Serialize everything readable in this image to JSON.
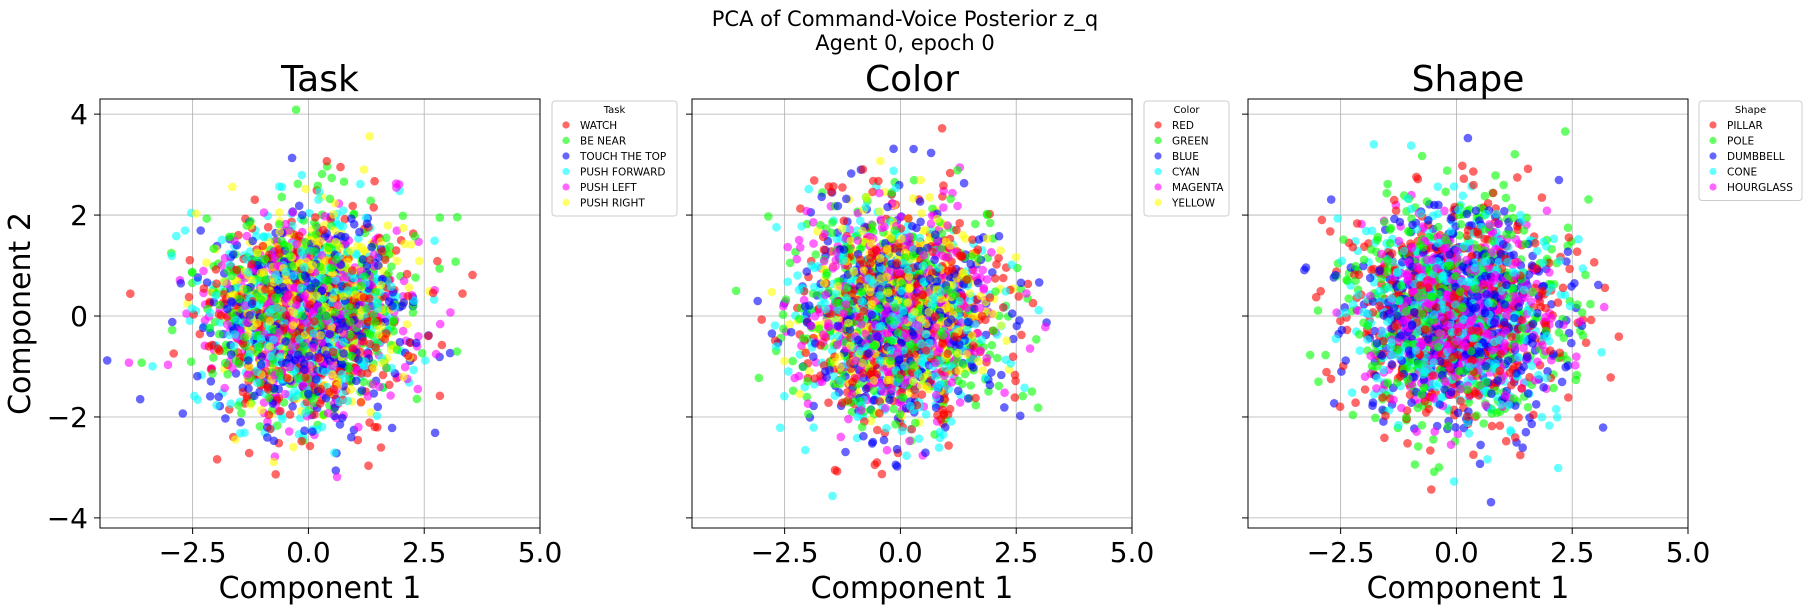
{
  "figure": {
    "suptitle_line1": "PCA of Command-Voice Posterior z_q",
    "suptitle_line2": "Agent 0, epoch 0"
  },
  "palette": [
    "#ff0000",
    "#00ff00",
    "#0000ff",
    "#00ffff",
    "#ff00ff",
    "#ffff00"
  ],
  "chart_data": [
    {
      "type": "scatter",
      "title": "Task",
      "xlabel": "Component 1",
      "ylabel": "Component 2",
      "xlim": [
        -4.5,
        5.0
      ],
      "ylim": [
        -4.2,
        4.3
      ],
      "xticks": [
        -2.5,
        0.0,
        2.5,
        5.0
      ],
      "xtick_labels": [
        "−2.5",
        "0.0",
        "2.5",
        "5.0"
      ],
      "yticks": [
        -4,
        -2,
        0,
        2,
        4
      ],
      "ytick_labels": [
        "−4",
        "−2",
        "0",
        "2",
        "4"
      ],
      "grid": true,
      "legend_placement": "outside-upper-right",
      "legend_title": "Task",
      "series": [
        {
          "name": "WATCH",
          "color": "#ff0000",
          "center": [
            0.0,
            0.0
          ],
          "spread": [
            1.1,
            1.05
          ],
          "count": 420
        },
        {
          "name": "BE NEAR",
          "color": "#00ff00",
          "center": [
            0.0,
            0.0
          ],
          "spread": [
            1.1,
            1.05
          ],
          "count": 420
        },
        {
          "name": "TOUCH THE TOP",
          "color": "#0000ff",
          "center": [
            0.0,
            0.0
          ],
          "spread": [
            1.05,
            1.0
          ],
          "count": 420
        },
        {
          "name": "PUSH FORWARD",
          "color": "#00ffff",
          "center": [
            0.0,
            0.0
          ],
          "spread": [
            1.05,
            1.0
          ],
          "count": 420
        },
        {
          "name": "PUSH LEFT",
          "color": "#ff00ff",
          "center": [
            0.0,
            0.0
          ],
          "spread": [
            1.0,
            0.95
          ],
          "count": 420
        },
        {
          "name": "PUSH RIGHT",
          "color": "#ffff00",
          "center": [
            0.0,
            0.2
          ],
          "spread": [
            0.95,
            0.9
          ],
          "count": 420
        }
      ]
    },
    {
      "type": "scatter",
      "title": "Color",
      "xlabel": "Component 1",
      "ylabel": "",
      "xlim": [
        -4.5,
        5.0
      ],
      "ylim": [
        -4.2,
        4.3
      ],
      "xticks": [
        -2.5,
        0.0,
        2.5,
        5.0
      ],
      "xtick_labels": [
        "−2.5",
        "0.0",
        "2.5",
        "5.0"
      ],
      "yticks": [
        -4,
        -2,
        0,
        2,
        4
      ],
      "ytick_labels": [],
      "grid": true,
      "legend_placement": "outside-upper-right",
      "legend_title": "Color",
      "series": [
        {
          "name": "RED",
          "color": "#ff0000",
          "center": [
            0.0,
            0.0
          ],
          "spread": [
            1.1,
            1.05
          ],
          "count": 420
        },
        {
          "name": "GREEN",
          "color": "#00ff00",
          "center": [
            0.0,
            0.0
          ],
          "spread": [
            1.1,
            1.05
          ],
          "count": 420
        },
        {
          "name": "BLUE",
          "color": "#0000ff",
          "center": [
            0.0,
            0.0
          ],
          "spread": [
            1.05,
            1.0
          ],
          "count": 420
        },
        {
          "name": "CYAN",
          "color": "#00ffff",
          "center": [
            0.0,
            0.0
          ],
          "spread": [
            1.05,
            1.0
          ],
          "count": 420
        },
        {
          "name": "MAGENTA",
          "color": "#ff00ff",
          "center": [
            0.0,
            0.0
          ],
          "spread": [
            1.0,
            0.95
          ],
          "count": 420
        },
        {
          "name": "YELLOW",
          "color": "#ffff00",
          "center": [
            0.0,
            0.2
          ],
          "spread": [
            0.95,
            0.9
          ],
          "count": 420
        }
      ]
    },
    {
      "type": "scatter",
      "title": "Shape",
      "xlabel": "Component 1",
      "ylabel": "",
      "xlim": [
        -4.5,
        5.0
      ],
      "ylim": [
        -4.2,
        4.3
      ],
      "xticks": [
        -2.5,
        0.0,
        2.5,
        5.0
      ],
      "xtick_labels": [
        "−2.5",
        "0.0",
        "2.5",
        "5.0"
      ],
      "yticks": [
        -4,
        -2,
        0,
        2,
        4
      ],
      "ytick_labels": [],
      "grid": true,
      "legend_placement": "outside-upper-right",
      "legend_title": "Shape",
      "series": [
        {
          "name": "PILLAR",
          "color": "#ff0000",
          "center": [
            0.0,
            0.0
          ],
          "spread": [
            1.15,
            1.1
          ],
          "count": 500
        },
        {
          "name": "POLE",
          "color": "#00ff00",
          "center": [
            0.0,
            0.0
          ],
          "spread": [
            1.15,
            1.1
          ],
          "count": 500
        },
        {
          "name": "DUMBBELL",
          "color": "#0000ff",
          "center": [
            0.0,
            0.0
          ],
          "spread": [
            1.1,
            1.05
          ],
          "count": 500
        },
        {
          "name": "CONE",
          "color": "#00ffff",
          "center": [
            0.0,
            0.0
          ],
          "spread": [
            1.05,
            1.0
          ],
          "count": 500
        },
        {
          "name": "HOURGLASS",
          "color": "#ff00ff",
          "center": [
            0.0,
            0.0
          ],
          "spread": [
            0.85,
            0.85
          ],
          "count": 600
        }
      ]
    }
  ]
}
